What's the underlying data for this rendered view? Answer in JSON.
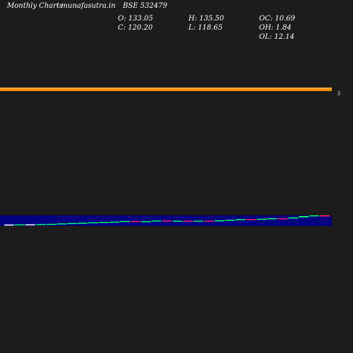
{
  "header": {
    "chart_type_label": "Monthly Charts",
    "site": "- munafasutra.in",
    "symbol": "BSE 532479"
  },
  "ohlc": {
    "open": "O: 133.05",
    "close": "C: 120.20",
    "high": "H: 135.50",
    "low": "L: 118.65",
    "oc": "OC: 10.69",
    "oh": "OH: 1.84",
    "ol": "OL: 12.14"
  },
  "chart_data": {
    "type": "candlestick",
    "right_label": "5",
    "colors": {
      "background": "#1c1c1c",
      "price_band": "#ff8c00",
      "volume_band": "#000080",
      "up": "#00ff66",
      "down": "#ff2060",
      "neutral": "#ffffff"
    },
    "candles": [
      {
        "t": 0,
        "o": 14,
        "c": 14,
        "dir": "flat"
      },
      {
        "t": 1,
        "o": 14,
        "c": 15,
        "dir": "up"
      },
      {
        "t": 2,
        "o": 15,
        "c": 15,
        "dir": "flat"
      },
      {
        "t": 3,
        "o": 15,
        "c": 16,
        "dir": "up"
      },
      {
        "t": 4,
        "o": 16,
        "c": 17,
        "dir": "up"
      },
      {
        "t": 5,
        "o": 17,
        "c": 19,
        "dir": "up"
      },
      {
        "t": 6,
        "o": 19,
        "c": 21,
        "dir": "up"
      },
      {
        "t": 7,
        "o": 21,
        "c": 22,
        "dir": "up"
      },
      {
        "t": 8,
        "o": 22,
        "c": 24,
        "dir": "up"
      },
      {
        "t": 9,
        "o": 24,
        "c": 25,
        "dir": "up"
      },
      {
        "t": 10,
        "o": 25,
        "c": 27,
        "dir": "up"
      },
      {
        "t": 11,
        "o": 27,
        "c": 30,
        "dir": "up"
      },
      {
        "t": 12,
        "o": 30,
        "c": 27,
        "dir": "down"
      },
      {
        "t": 13,
        "o": 27,
        "c": 29,
        "dir": "up"
      },
      {
        "t": 14,
        "o": 29,
        "c": 32,
        "dir": "up"
      },
      {
        "t": 15,
        "o": 32,
        "c": 30,
        "dir": "down"
      },
      {
        "t": 16,
        "o": 30,
        "c": 31,
        "dir": "up"
      },
      {
        "t": 17,
        "o": 31,
        "c": 29,
        "dir": "down"
      },
      {
        "t": 18,
        "o": 29,
        "c": 31,
        "dir": "up"
      },
      {
        "t": 19,
        "o": 31,
        "c": 30,
        "dir": "down"
      },
      {
        "t": 20,
        "o": 30,
        "c": 33,
        "dir": "up"
      },
      {
        "t": 21,
        "o": 33,
        "c": 35,
        "dir": "up"
      },
      {
        "t": 22,
        "o": 35,
        "c": 38,
        "dir": "up"
      },
      {
        "t": 23,
        "o": 38,
        "c": 36,
        "dir": "down"
      },
      {
        "t": 24,
        "o": 36,
        "c": 40,
        "dir": "up"
      },
      {
        "t": 25,
        "o": 40,
        "c": 42,
        "dir": "up"
      },
      {
        "t": 26,
        "o": 42,
        "c": 41,
        "dir": "down"
      },
      {
        "t": 27,
        "o": 41,
        "c": 46,
        "dir": "up"
      },
      {
        "t": 28,
        "o": 46,
        "c": 52,
        "dir": "up"
      },
      {
        "t": 29,
        "o": 52,
        "c": 55,
        "dir": "up"
      },
      {
        "t": 30,
        "o": 55,
        "c": 50,
        "dir": "down"
      }
    ]
  }
}
